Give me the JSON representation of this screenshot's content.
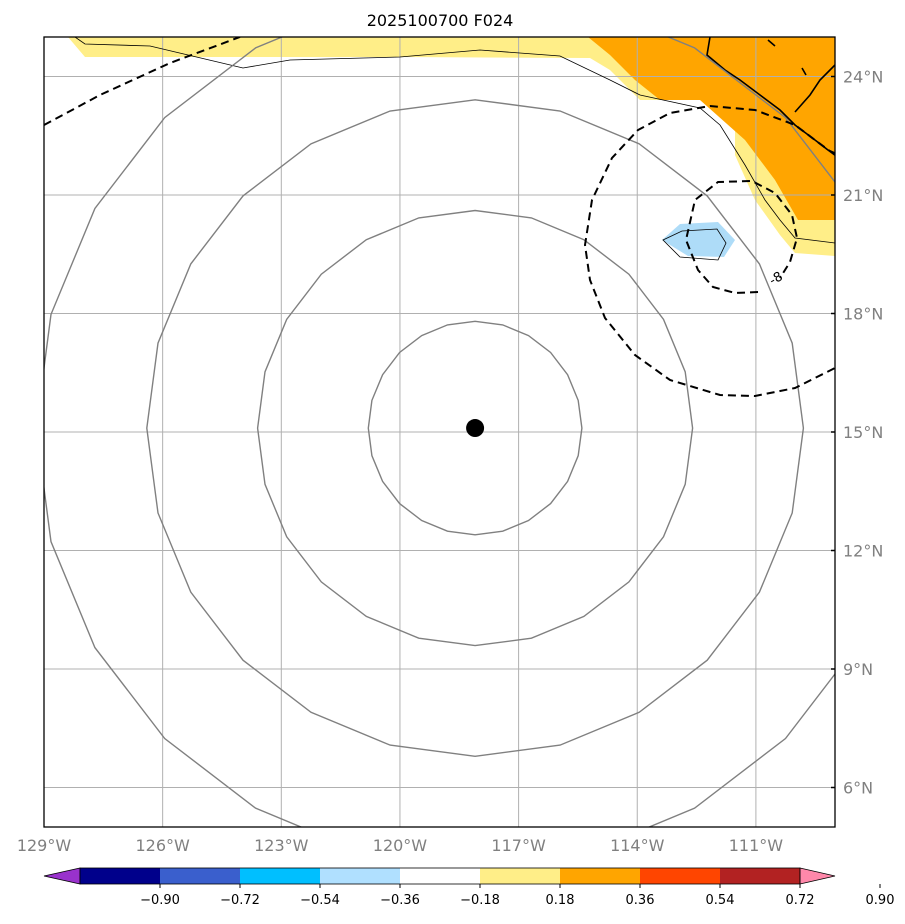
{
  "title": "2025100700 F024",
  "map": {
    "lon_range": [
      -129,
      -109
    ],
    "lat_range": [
      5,
      25
    ],
    "lon_ticks": [
      {
        "value": -129,
        "label": "129°W"
      },
      {
        "value": -126,
        "label": "126°W"
      },
      {
        "value": -123,
        "label": "123°W"
      },
      {
        "value": -120,
        "label": "120°W"
      },
      {
        "value": -117,
        "label": "117°W"
      },
      {
        "value": -114,
        "label": "114°W"
      },
      {
        "value": -111,
        "label": "111°W"
      }
    ],
    "lat_ticks": [
      {
        "value": 6,
        "label": "6°N"
      },
      {
        "value": 9,
        "label": "9°N"
      },
      {
        "value": 12,
        "label": "12°N"
      },
      {
        "value": 15,
        "label": "15°N"
      },
      {
        "value": 18,
        "label": "18°N"
      },
      {
        "value": 21,
        "label": "21°N"
      },
      {
        "value": 24,
        "label": "24°N"
      }
    ],
    "storm_center": {
      "lon": -118.1,
      "lat": 15.1
    },
    "range_rings_deg": [
      2.7,
      5.5,
      8.3,
      11.1
    ],
    "dashed_contour_label": "-8",
    "fill_colors": {
      "light_yellow": "#ffee88",
      "orange": "#ffa500",
      "light_blue": "#aedcf8"
    }
  },
  "colorbar": {
    "colors": [
      "#9932cc",
      "#00008b",
      "#3a5fcd",
      "#00bfff",
      "#b0e0ff",
      "#ffffff",
      "#ffee88",
      "#ffa500",
      "#ff4500",
      "#b22222",
      "#ff88aa"
    ],
    "labels": [
      "−0.90",
      "−0.72",
      "−0.54",
      "−0.36",
      "−0.18",
      "0.18",
      "0.36",
      "0.54",
      "0.72",
      "0.90"
    ]
  }
}
